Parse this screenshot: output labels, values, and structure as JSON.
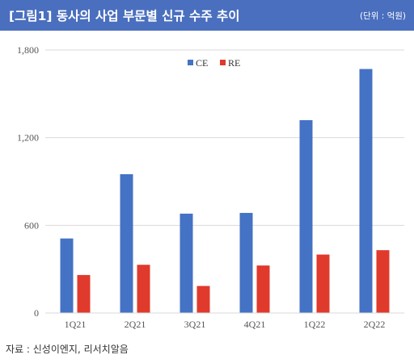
{
  "header": {
    "title": "[그림1] 동사의 사업 부문별 신규 수주 추이",
    "unit": "(단위 : 억원)"
  },
  "source": "자료 : 신성이엔지, 리서치알음",
  "colors": {
    "header_bg": "#4a6fbe",
    "ce": "#4472c4",
    "re": "#e03a2c"
  },
  "chart_data": {
    "type": "bar",
    "title": "",
    "xlabel": "",
    "ylabel": "",
    "categories": [
      "1Q21",
      "2Q21",
      "3Q21",
      "4Q21",
      "1Q22",
      "2Q22"
    ],
    "series": [
      {
        "name": "CE",
        "values": [
          510,
          950,
          680,
          685,
          1320,
          1670
        ]
      },
      {
        "name": "RE",
        "values": [
          260,
          330,
          185,
          325,
          400,
          430
        ]
      }
    ],
    "ylim": [
      0,
      1800
    ],
    "yticks": [
      0,
      600,
      1200,
      1800
    ],
    "ytick_labels": [
      "0",
      "600",
      "1,200",
      "1,800"
    ],
    "grid": true,
    "legend": "top-center"
  }
}
